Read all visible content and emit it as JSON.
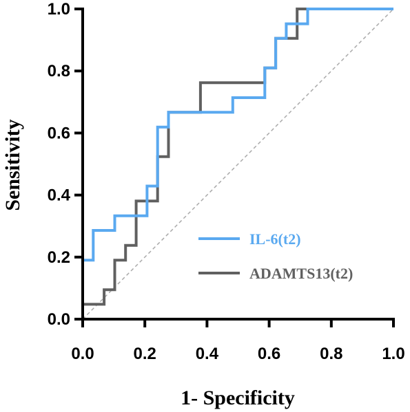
{
  "chart_data": {
    "type": "line",
    "title": "",
    "xlabel": "1- Specificity",
    "ylabel": "Sensitivity",
    "xlim": [
      0,
      1
    ],
    "ylim": [
      0,
      1
    ],
    "x_ticks": [
      "0.0",
      "0.2",
      "0.4",
      "0.6",
      "0.8",
      "1.0"
    ],
    "y_ticks": [
      "0.0",
      "0.2",
      "0.4",
      "0.6",
      "0.8",
      "1.0"
    ],
    "grid": false,
    "legend_position": "bottom-right",
    "reference_line": {
      "style": "dashed",
      "color": "#aaaaaa",
      "points": [
        [
          0,
          0
        ],
        [
          1,
          1
        ]
      ]
    },
    "series": [
      {
        "name": "IL-6(t2)",
        "color": "#5aa9f0",
        "points": [
          [
            0,
            0
          ],
          [
            0,
            0.19
          ],
          [
            0.034,
            0.19
          ],
          [
            0.034,
            0.286
          ],
          [
            0.103,
            0.286
          ],
          [
            0.103,
            0.333
          ],
          [
            0.207,
            0.333
          ],
          [
            0.207,
            0.429
          ],
          [
            0.241,
            0.429
          ],
          [
            0.241,
            0.619
          ],
          [
            0.276,
            0.619
          ],
          [
            0.276,
            0.667
          ],
          [
            0.483,
            0.667
          ],
          [
            0.483,
            0.714
          ],
          [
            0.586,
            0.714
          ],
          [
            0.586,
            0.81
          ],
          [
            0.621,
            0.81
          ],
          [
            0.621,
            0.905
          ],
          [
            0.655,
            0.905
          ],
          [
            0.655,
            0.952
          ],
          [
            0.724,
            0.952
          ],
          [
            0.724,
            1.0
          ],
          [
            1.0,
            1.0
          ]
        ]
      },
      {
        "name": "ADAMTS13(t2)",
        "color": "#606060",
        "points": [
          [
            0,
            0
          ],
          [
            0,
            0.048
          ],
          [
            0.069,
            0.048
          ],
          [
            0.069,
            0.095
          ],
          [
            0.103,
            0.095
          ],
          [
            0.103,
            0.19
          ],
          [
            0.138,
            0.19
          ],
          [
            0.138,
            0.238
          ],
          [
            0.172,
            0.238
          ],
          [
            0.172,
            0.381
          ],
          [
            0.241,
            0.381
          ],
          [
            0.241,
            0.524
          ],
          [
            0.276,
            0.524
          ],
          [
            0.276,
            0.667
          ],
          [
            0.379,
            0.667
          ],
          [
            0.379,
            0.762
          ],
          [
            0.586,
            0.762
          ],
          [
            0.586,
            0.81
          ],
          [
            0.621,
            0.81
          ],
          [
            0.621,
            0.857
          ],
          [
            0.621,
            0.905
          ],
          [
            0.69,
            0.905
          ],
          [
            0.69,
            1.0
          ],
          [
            0.724,
            1.0
          ]
        ]
      }
    ]
  }
}
